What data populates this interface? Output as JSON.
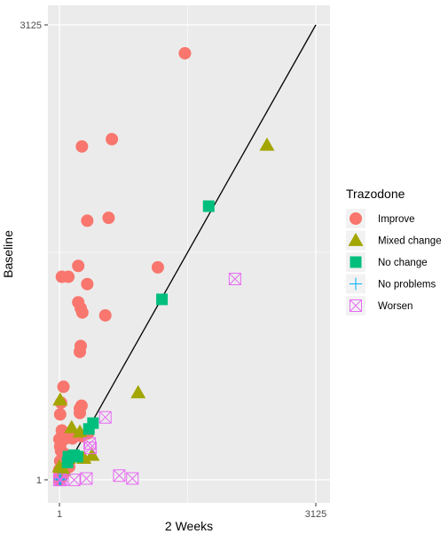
{
  "chart_data": {
    "type": "scatter",
    "xlabel": "2 Weeks",
    "ylabel": "Baseline",
    "xlim": [
      1,
      3125
    ],
    "ylim": [
      1,
      3125
    ],
    "x_tick_labels": [
      "1",
      "3125"
    ],
    "y_tick_labels": [
      "1",
      "3125"
    ],
    "grid": true,
    "legend": {
      "title": "Trazodone",
      "position": "right",
      "entries": [
        "Improve",
        "Mixed change",
        "No change",
        "No problems",
        "Worsen"
      ]
    },
    "reference_line": {
      "from": [
        1,
        1
      ],
      "to": [
        3125,
        3125
      ]
    },
    "colors": {
      "Improve": "#F8766D",
      "Mixed change": "#A3A500",
      "No change": "#00BF7D",
      "No problems": "#00B0F6",
      "Worsen": "#E76BF3",
      "panel": "#EBEBEB",
      "grid": "#FFFFFF"
    },
    "series": [
      {
        "name": "Improve",
        "points": [
          [
            1530,
            2930
          ],
          [
            275,
            2290
          ],
          [
            640,
            2340
          ],
          [
            340,
            1780
          ],
          [
            600,
            1800
          ],
          [
            230,
            1470
          ],
          [
            1200,
            1460
          ],
          [
            30,
            1395
          ],
          [
            110,
            1395
          ],
          [
            340,
            1345
          ],
          [
            230,
            1220
          ],
          [
            260,
            1180
          ],
          [
            280,
            1150
          ],
          [
            560,
            1130
          ],
          [
            260,
            920
          ],
          [
            250,
            880
          ],
          [
            50,
            640
          ],
          [
            20,
            530
          ],
          [
            270,
            510
          ],
          [
            250,
            490
          ],
          [
            250,
            460
          ],
          [
            10,
            450
          ],
          [
            30,
            340
          ],
          [
            80,
            290
          ],
          [
            160,
            285
          ],
          [
            0,
            280
          ],
          [
            60,
            280
          ],
          [
            350,
            320
          ],
          [
            270,
            300
          ],
          [
            10,
            230
          ],
          [
            20,
            200
          ],
          [
            60,
            180
          ],
          [
            10,
            130
          ],
          [
            80,
            120
          ],
          [
            120,
            90
          ],
          [
            0,
            70
          ],
          [
            20,
            60
          ],
          [
            60,
            50
          ],
          [
            0,
            30
          ],
          [
            30,
            20
          ],
          [
            0,
            0
          ],
          [
            10,
            10
          ]
        ]
      },
      {
        "name": "Mixed change",
        "points": [
          [
            2530,
            2300
          ],
          [
            960,
            600
          ],
          [
            10,
            550
          ],
          [
            150,
            360
          ],
          [
            250,
            330
          ],
          [
            400,
            170
          ],
          [
            300,
            150
          ],
          [
            110,
            150
          ],
          [
            0,
            90
          ],
          [
            50,
            70
          ]
        ]
      },
      {
        "name": "No change",
        "points": [
          [
            1820,
            1880
          ],
          [
            1250,
            1240
          ],
          [
            410,
            390
          ],
          [
            360,
            350
          ],
          [
            180,
            170
          ],
          [
            220,
            160
          ],
          [
            110,
            160
          ],
          [
            100,
            120
          ]
        ]
      },
      {
        "name": "No problems",
        "points": [
          [
            0,
            0
          ],
          [
            5,
            5
          ],
          [
            10,
            3
          ],
          [
            3,
            8
          ],
          [
            20,
            2
          ]
        ]
      },
      {
        "name": "Worsen",
        "points": [
          [
            2140,
            1380
          ],
          [
            560,
            430
          ],
          [
            370,
            250
          ],
          [
            380,
            220
          ],
          [
            730,
            30
          ],
          [
            890,
            10
          ],
          [
            330,
            10
          ],
          [
            180,
            0
          ],
          [
            20,
            0
          ],
          [
            0,
            0
          ]
        ]
      }
    ]
  }
}
